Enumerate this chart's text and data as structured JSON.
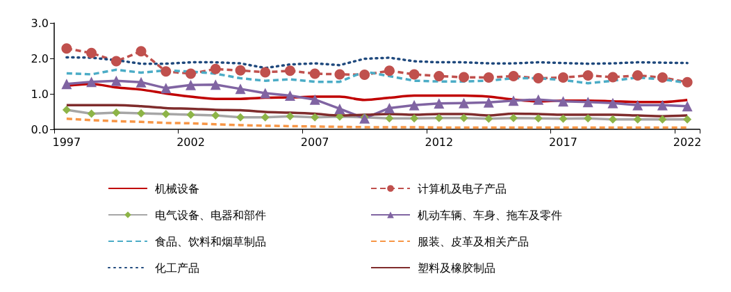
{
  "chart_data": {
    "type": "line",
    "categories": [
      "1997",
      null,
      null,
      null,
      null,
      "2002",
      null,
      null,
      null,
      null,
      "2007",
      null,
      null,
      null,
      null,
      "2012",
      null,
      null,
      null,
      null,
      "2017",
      null,
      null,
      null,
      null,
      "2022"
    ],
    "ylim": [
      0,
      3
    ],
    "yticks": [
      {
        "value": 0,
        "label": "0.0"
      },
      {
        "value": 1,
        "label": "1.0"
      },
      {
        "value": 2,
        "label": "2.0"
      },
      {
        "value": 3,
        "label": "3.0"
      }
    ],
    "grid": false,
    "legend": "bottom",
    "series": [
      {
        "name": "机械设备",
        "color": "#c00000",
        "line_style": "solid",
        "marker": "none",
        "values": [
          1.23,
          1.28,
          1.18,
          1.12,
          1.01,
          0.92,
          0.86,
          0.86,
          0.89,
          0.9,
          0.92,
          0.92,
          0.83,
          0.89,
          0.95,
          0.95,
          0.95,
          0.92,
          0.84,
          0.79,
          0.81,
          0.81,
          0.79,
          0.77,
          0.77,
          0.83
        ]
      },
      {
        "name": "计算机及电子产品",
        "color": "#c0504d",
        "line_style": "dashed",
        "marker": "circle",
        "values": [
          2.28,
          2.15,
          1.92,
          2.2,
          1.63,
          1.57,
          1.7,
          1.66,
          1.61,
          1.65,
          1.57,
          1.55,
          1.54,
          1.65,
          1.55,
          1.5,
          1.47,
          1.46,
          1.5,
          1.44,
          1.46,
          1.52,
          1.47,
          1.52,
          1.46,
          1.33
        ]
      },
      {
        "name": "电气设备、电器和部件",
        "color": "#a6a6a6",
        "colors": [
          "#8db447",
          "#8db447",
          "#8db447",
          "#8db447",
          "#8db447",
          "#8db447",
          "#8db447",
          "#8db447",
          "#8db447",
          "#8db447",
          "#8db447",
          "#8db447",
          "#8db447",
          "#8db447",
          "#8db447",
          "#8db447",
          "#8db447",
          "#8db447",
          "#8db447",
          "#8db447",
          "#8db447",
          "#8db447",
          "#8db447",
          "#8db447",
          "#8db447",
          "#8db447"
        ],
        "line_style": "solid",
        "marker": "diamond",
        "values": [
          0.55,
          0.44,
          0.47,
          0.45,
          0.43,
          0.41,
          0.39,
          0.34,
          0.34,
          0.37,
          0.34,
          0.36,
          0.34,
          0.31,
          0.31,
          0.32,
          0.32,
          0.3,
          0.32,
          0.31,
          0.3,
          0.31,
          0.28,
          0.28,
          0.28,
          0.28
        ]
      },
      {
        "name": "机动车辆、车身、拖车及零件",
        "color": "#8064a2",
        "line_style": "solid",
        "marker": "triangle",
        "values": [
          1.28,
          1.34,
          1.37,
          1.33,
          1.16,
          1.25,
          1.26,
          1.14,
          1.02,
          0.95,
          0.84,
          0.58,
          0.31,
          0.6,
          0.68,
          0.73,
          0.74,
          0.76,
          0.81,
          0.84,
          0.79,
          0.77,
          0.74,
          0.68,
          0.68,
          0.65
        ]
      },
      {
        "name": "食品、饮料和烟草制品",
        "color": "#4bacc6",
        "line_style": "dashed",
        "marker": "none",
        "values": [
          1.58,
          1.55,
          1.68,
          1.6,
          1.66,
          1.63,
          1.57,
          1.44,
          1.37,
          1.41,
          1.34,
          1.34,
          1.63,
          1.5,
          1.37,
          1.35,
          1.35,
          1.37,
          1.44,
          1.44,
          1.39,
          1.3,
          1.37,
          1.46,
          1.41,
          1.31
        ]
      },
      {
        "name": "服装、皮革及相关产品",
        "color": "#f79646",
        "line_style": "dashed",
        "marker": "none",
        "values": [
          0.3,
          0.26,
          0.23,
          0.21,
          0.18,
          0.17,
          0.14,
          0.12,
          0.1,
          0.09,
          0.08,
          0.07,
          0.06,
          0.06,
          0.06,
          0.05,
          0.05,
          0.05,
          0.05,
          0.05,
          0.05,
          0.05,
          0.05,
          0.05,
          0.05,
          0.05
        ]
      },
      {
        "name": "化工产品",
        "color": "#1f497d",
        "line_style": "dotted",
        "marker": "none",
        "values": [
          2.03,
          2.02,
          1.95,
          1.85,
          1.85,
          1.89,
          1.89,
          1.86,
          1.73,
          1.83,
          1.86,
          1.81,
          1.99,
          2.02,
          1.92,
          1.89,
          1.89,
          1.86,
          1.86,
          1.89,
          1.87,
          1.85,
          1.86,
          1.89,
          1.88,
          1.87
        ]
      },
      {
        "name": "塑料及橡胶制品",
        "color": "#7f2c2c",
        "line_style": "solid",
        "marker": "none",
        "values": [
          0.68,
          0.68,
          0.68,
          0.65,
          0.6,
          0.58,
          0.55,
          0.54,
          0.49,
          0.47,
          0.44,
          0.39,
          0.41,
          0.43,
          0.41,
          0.43,
          0.43,
          0.39,
          0.44,
          0.43,
          0.41,
          0.41,
          0.41,
          0.39,
          0.37,
          0.39
        ]
      }
    ]
  }
}
